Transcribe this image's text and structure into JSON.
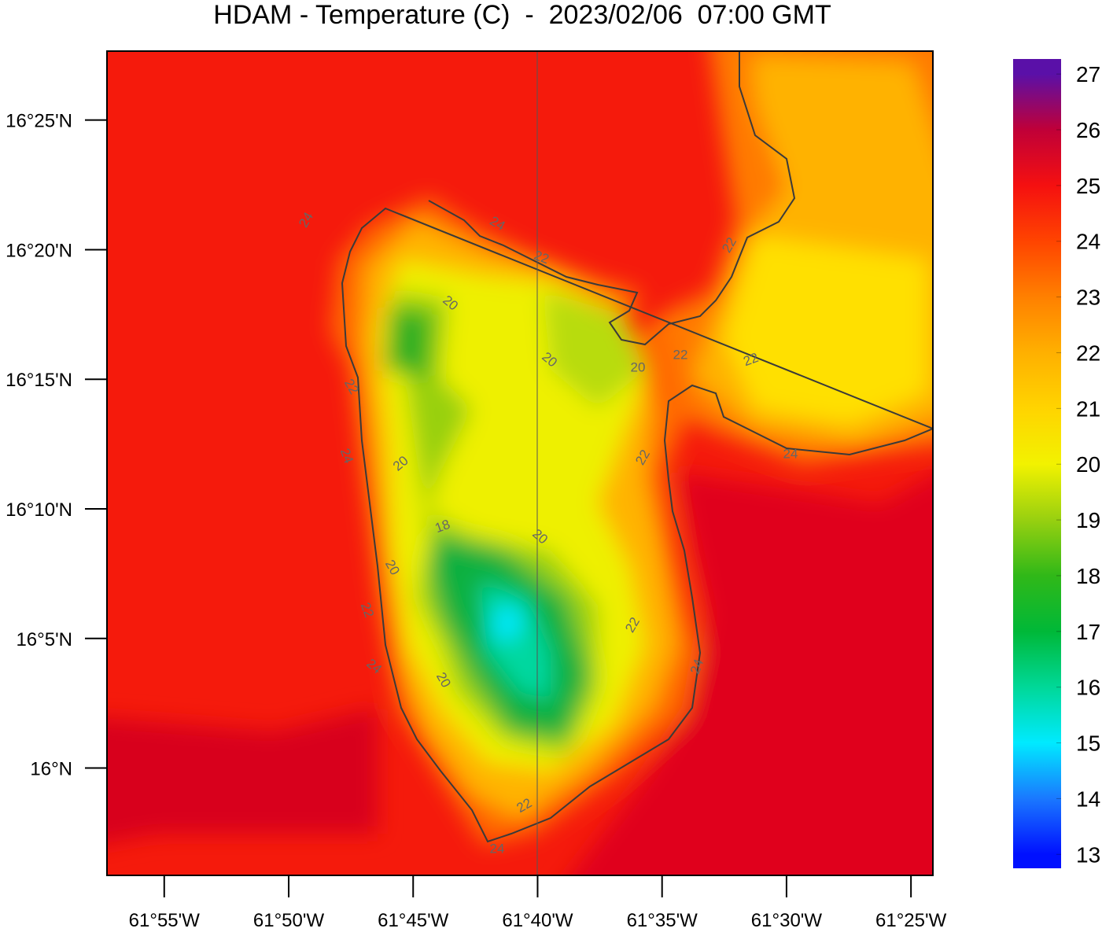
{
  "title": "HDAM - Temperature (C)  -  2023/02/06  07:00 GMT",
  "map": {
    "xlim": [
      -61.955,
      -61.402
    ],
    "ylim": [
      15.931,
      16.461
    ],
    "xticks": [
      {
        "value": -61.91667,
        "label": "61°55'W"
      },
      {
        "value": -61.83333,
        "label": "61°50'W"
      },
      {
        "value": -61.75,
        "label": "61°45'W"
      },
      {
        "value": -61.66667,
        "label": "61°40'W"
      },
      {
        "value": -61.58333,
        "label": "61°35'W"
      },
      {
        "value": -61.5,
        "label": "61°30'W"
      },
      {
        "value": -61.41667,
        "label": "61°25'W"
      }
    ],
    "yticks": [
      {
        "value": 16.41667,
        "label": "16°25'N"
      },
      {
        "value": 16.33333,
        "label": "16°20'N"
      },
      {
        "value": 16.25,
        "label": "16°15'N"
      },
      {
        "value": 16.16667,
        "label": "16°10'N"
      },
      {
        "value": 16.08333,
        "label": "16°5'N"
      },
      {
        "value": 16.0,
        "label": "16°N"
      }
    ],
    "contour_labels": [
      24,
      24,
      22,
      22,
      20,
      20,
      20,
      22,
      22,
      22,
      24,
      20,
      22,
      24,
      20,
      18,
      20,
      22,
      22,
      24,
      20,
      24,
      22,
      24
    ]
  },
  "colorbar": {
    "lim": [
      12.75,
      27.27
    ],
    "ticks": [
      13,
      14,
      15,
      16,
      17,
      18,
      19,
      20,
      21,
      22,
      23,
      24,
      25,
      26,
      27
    ],
    "colors": [
      "#0010ff",
      "#1a78ff",
      "#00eaff",
      "#00d898",
      "#00b838",
      "#30b818",
      "#98d010",
      "#f2f200",
      "#ffd400",
      "#ffb000",
      "#ff8000",
      "#ff4400",
      "#f51010",
      "#c00038",
      "#5a10a8"
    ]
  }
}
